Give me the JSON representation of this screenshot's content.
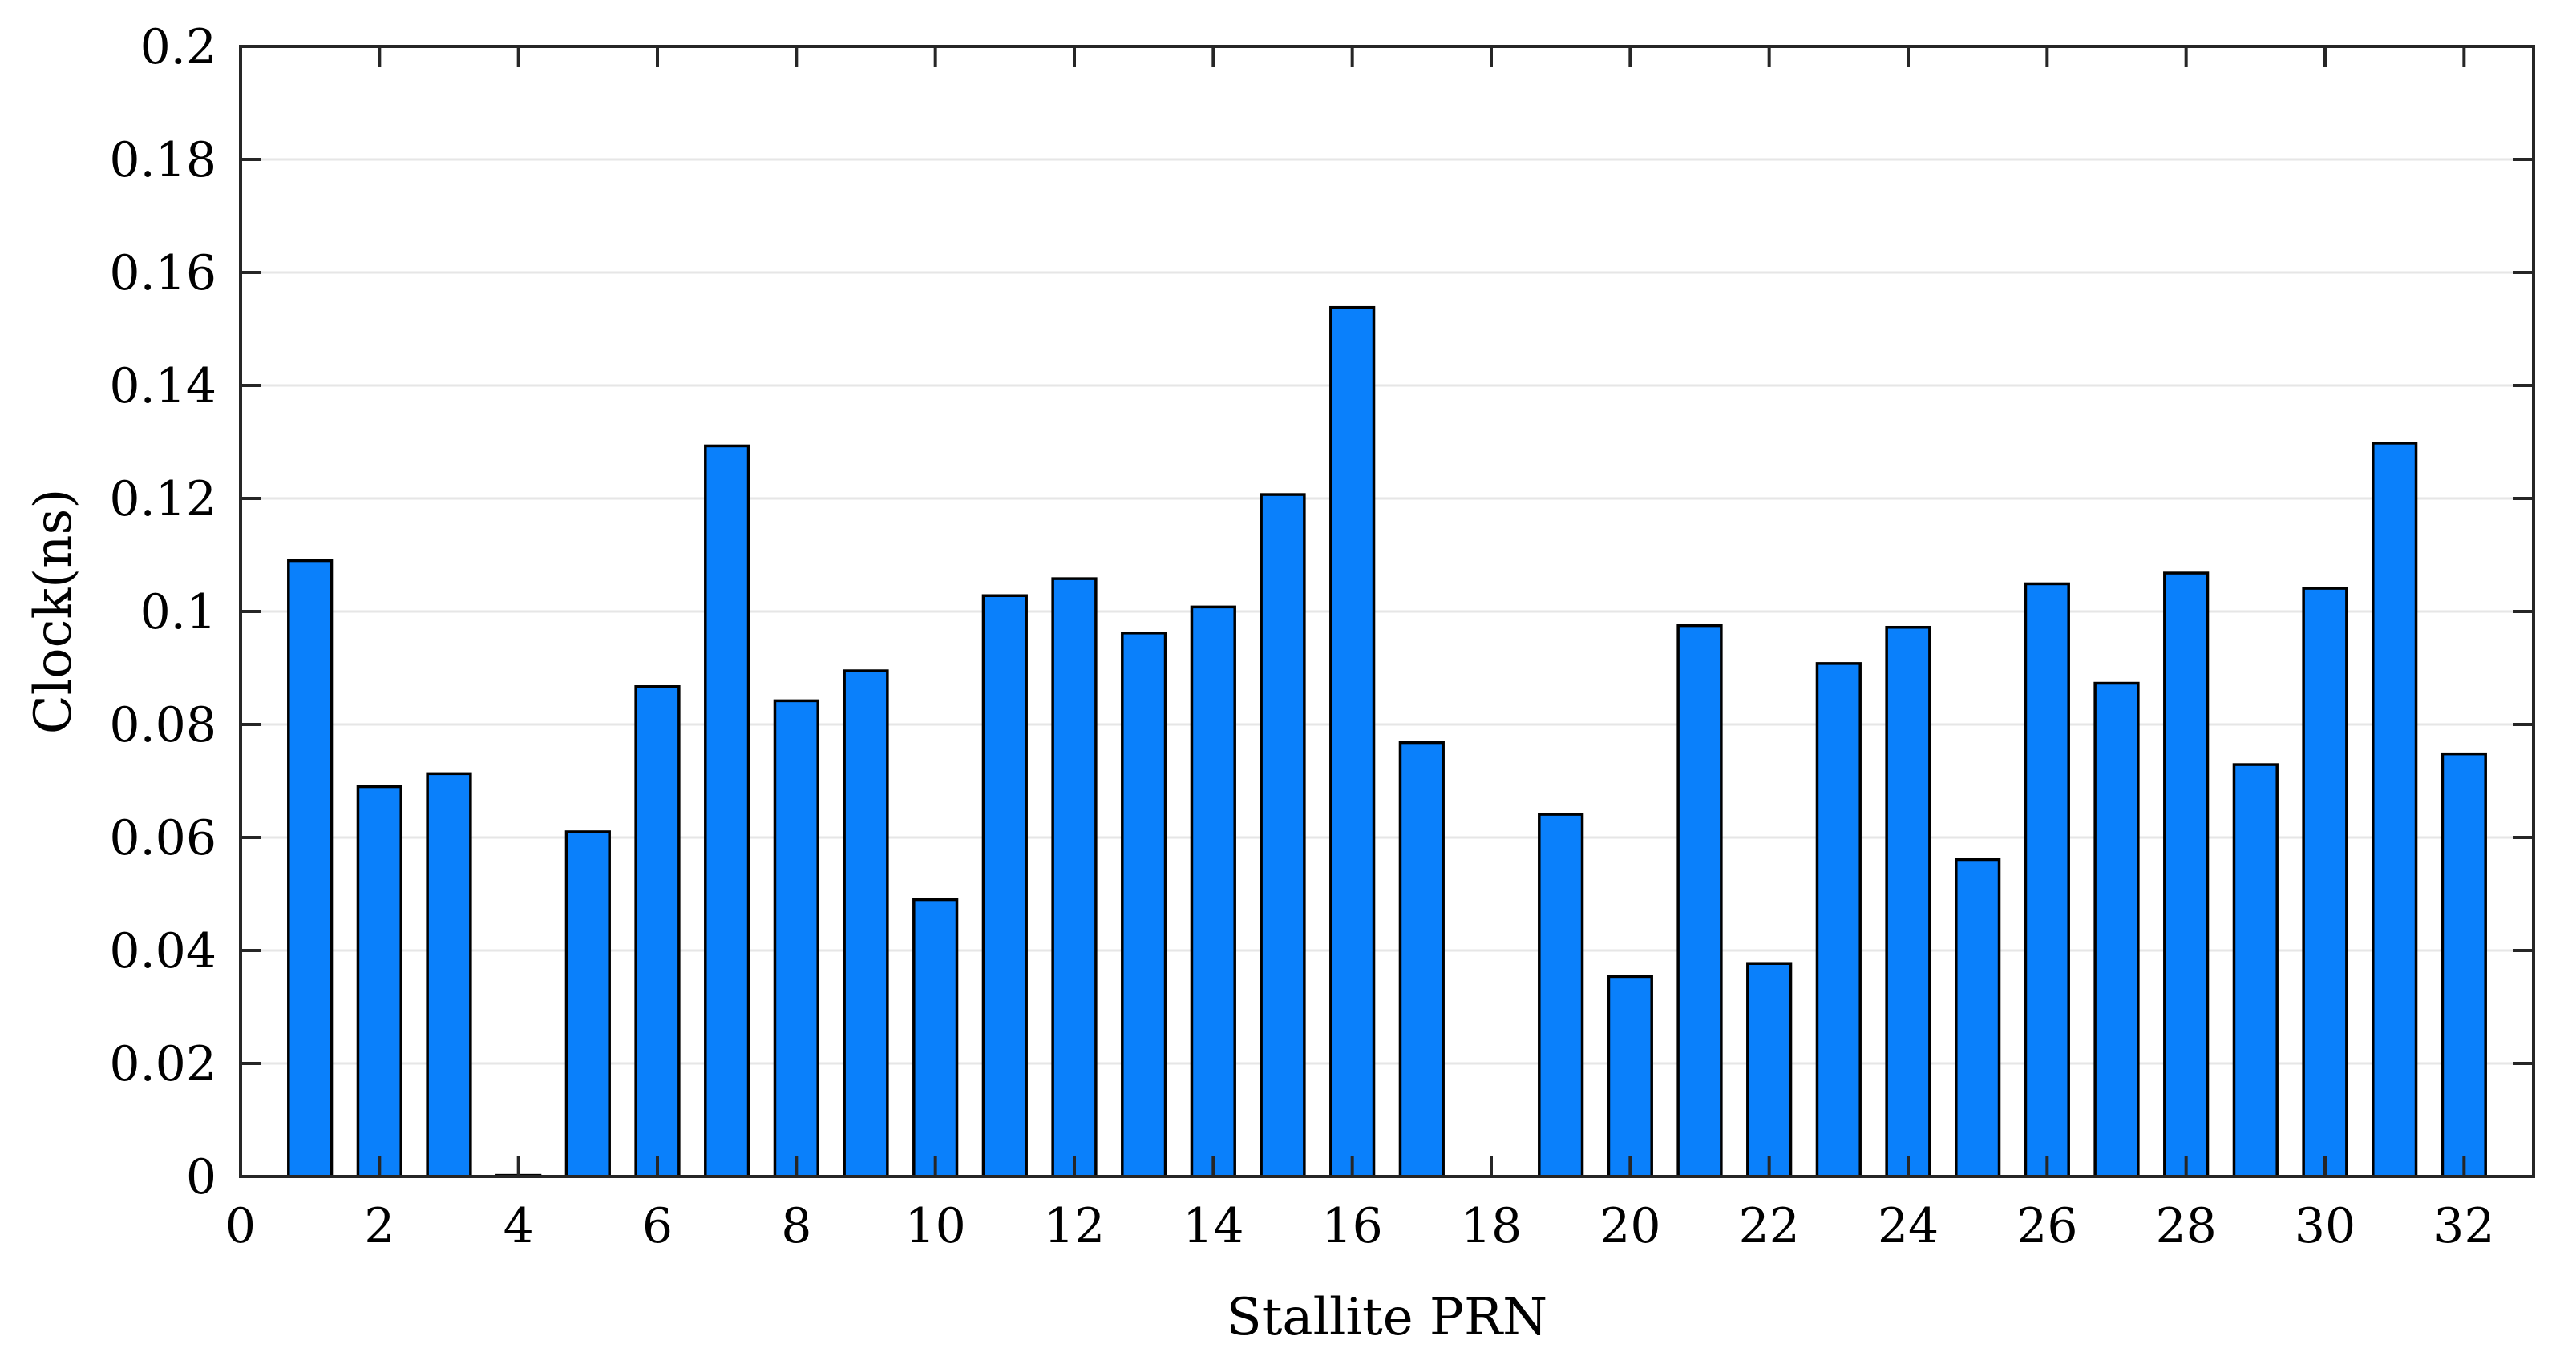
{
  "chart_data": {
    "type": "bar",
    "title": "",
    "xlabel": "Stallite PRN",
    "ylabel": "Clock(ns)",
    "x": [
      1,
      2,
      3,
      4,
      5,
      6,
      7,
      8,
      9,
      10,
      11,
      12,
      13,
      14,
      15,
      16,
      17,
      18,
      19,
      20,
      21,
      22,
      23,
      24,
      25,
      26,
      27,
      28,
      29,
      30,
      31,
      32
    ],
    "values": [
      0.109,
      0.069,
      0.0713,
      0.0002,
      0.061,
      0.0867,
      0.1293,
      0.0842,
      0.0895,
      0.049,
      0.1028,
      0.1058,
      0.0962,
      0.1008,
      0.1207,
      0.1538,
      0.0768,
      0,
      0.0641,
      0.0354,
      0.0975,
      0.0377,
      0.0908,
      0.0972,
      0.0561,
      0.1049,
      0.0873,
      0.1068,
      0.0729,
      0.1041,
      0.1298,
      0.0748
    ],
    "xlim": [
      0,
      33
    ],
    "ylim": [
      0,
      0.2
    ],
    "xticks": [
      "0",
      "2",
      "4",
      "6",
      "8",
      "10",
      "12",
      "14",
      "16",
      "18",
      "20",
      "22",
      "24",
      "26",
      "28",
      "30",
      "32"
    ],
    "yticks": [
      "0",
      "0.02",
      "0.04",
      "0.06",
      "0.08",
      "0.1",
      "0.12",
      "0.14",
      "0.16",
      "0.18",
      "0.2"
    ],
    "grid": "horizontal",
    "colors": {
      "bar": "#0a80fb",
      "bar_edge": "#000000",
      "grid": "#e6e6e6"
    }
  }
}
